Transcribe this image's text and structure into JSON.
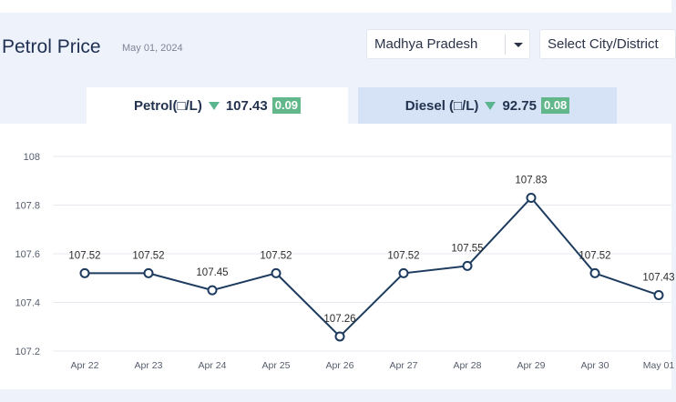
{
  "header": {
    "title": "Petrol Price",
    "date": "May 01, 2024"
  },
  "filters": {
    "state": "Madhya Pradesh",
    "city_placeholder": "Select City/District"
  },
  "tabs": [
    {
      "label": "Petrol(□/L)",
      "price": "107.43",
      "change": "0.09",
      "direction": "down"
    },
    {
      "label": "Diesel (□/L)",
      "price": "92.75",
      "change": "0.08",
      "direction": "down"
    }
  ],
  "colors": {
    "line": "#1c3b5f",
    "badge": "#62b88a",
    "arrow": "#5bb58e",
    "active_tab": "#ffffff",
    "inactive_tab": "#d6e3f6"
  },
  "chart_data": {
    "type": "line",
    "title": "",
    "xlabel": "",
    "ylabel": "",
    "categories": [
      "Apr 22",
      "Apr 23",
      "Apr 24",
      "Apr 25",
      "Apr 26",
      "Apr 27",
      "Apr 28",
      "Apr 29",
      "Apr 30",
      "May 01"
    ],
    "values": [
      107.52,
      107.52,
      107.45,
      107.52,
      107.26,
      107.52,
      107.55,
      107.83,
      107.52,
      107.43
    ],
    "data_labels": [
      "107.52",
      "107.52",
      "107.45",
      "107.52",
      "107.26",
      "107.52",
      "107.55",
      "107.83",
      "107.52",
      "107.43"
    ],
    "ylim": [
      107.2,
      108
    ],
    "yticks": [
      "108",
      "107.8",
      "107.6",
      "107.4",
      "107.2"
    ],
    "grid": true,
    "legend": "none"
  }
}
